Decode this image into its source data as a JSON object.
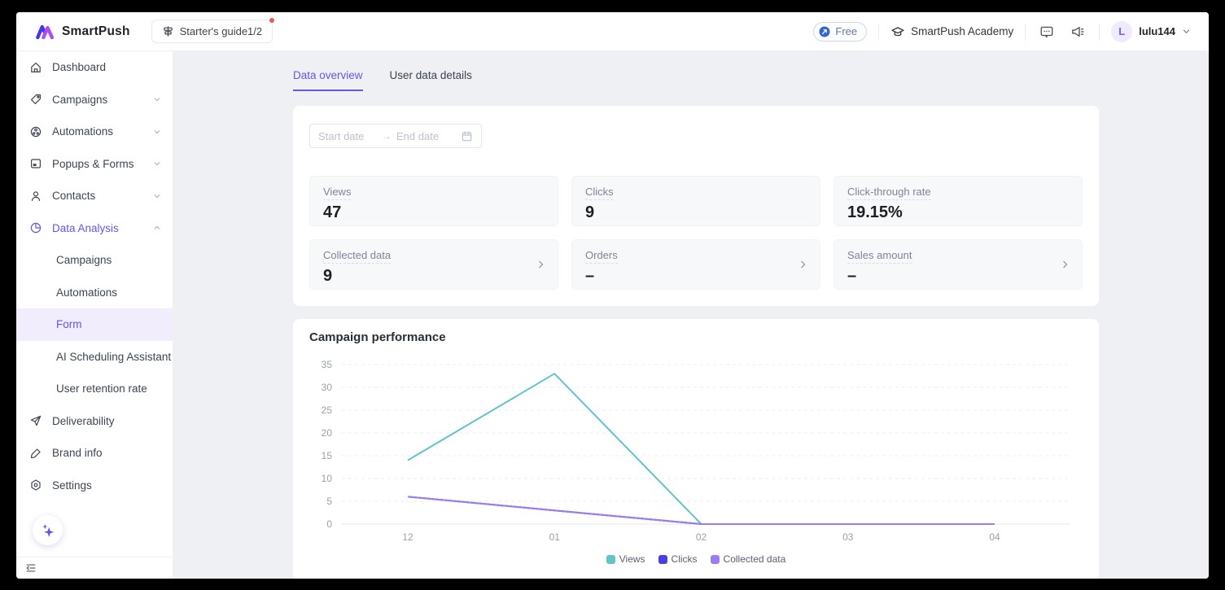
{
  "header": {
    "brand": "SmartPush",
    "starter_guide_label": "Starter's guide1/2",
    "plan_badge": "Free",
    "academy_label": "SmartPush Academy",
    "user": {
      "initial": "L",
      "name": "lulu144"
    }
  },
  "sidebar": {
    "items": [
      {
        "label": "Dashboard",
        "icon": "home-icon"
      },
      {
        "label": "Campaigns",
        "icon": "tag-icon",
        "chevron": "down"
      },
      {
        "label": "Automations",
        "icon": "automation-icon",
        "chevron": "down"
      },
      {
        "label": "Popups & Forms",
        "icon": "popup-icon",
        "chevron": "down"
      },
      {
        "label": "Contacts",
        "icon": "contacts-icon",
        "chevron": "down"
      },
      {
        "label": "Data Analysis",
        "icon": "pie-chart-icon",
        "chevron": "up",
        "active": true
      }
    ],
    "data_analysis_children": [
      {
        "label": "Campaigns"
      },
      {
        "label": "Automations"
      },
      {
        "label": "Form",
        "active": true
      },
      {
        "label": "AI Scheduling Assistant"
      },
      {
        "label": "User retention rate"
      }
    ],
    "items_bottom": [
      {
        "label": "Deliverability",
        "icon": "paper-plane-icon"
      },
      {
        "label": "Brand info",
        "icon": "brush-icon"
      },
      {
        "label": "Settings",
        "icon": "settings-icon"
      }
    ]
  },
  "tabs": [
    {
      "label": "Data overview",
      "active": true
    },
    {
      "label": "User data details",
      "active": false
    }
  ],
  "filters": {
    "start_placeholder": "Start date",
    "end_placeholder": "End date"
  },
  "stats": [
    {
      "label": "Views",
      "value": "47",
      "linked": false
    },
    {
      "label": "Clicks",
      "value": "9",
      "linked": false
    },
    {
      "label": "Click-through rate",
      "value": "19.15%",
      "linked": false
    },
    {
      "label": "Collected data",
      "value": "9",
      "linked": true
    },
    {
      "label": "Orders",
      "value": "–",
      "linked": true
    },
    {
      "label": "Sales amount",
      "value": "–",
      "linked": true
    }
  ],
  "chart_data": {
    "type": "line",
    "title": "Campaign performance",
    "x": [
      "12",
      "01",
      "02",
      "03",
      "04"
    ],
    "series": [
      {
        "name": "Views",
        "color": "#62C3CB",
        "values": [
          14,
          33,
          0,
          0,
          0
        ]
      },
      {
        "name": "Clicks",
        "color": "#4A3FE0",
        "values": [
          6,
          3,
          0,
          0,
          0
        ]
      },
      {
        "name": "Collected data",
        "color": "#9B7DF0",
        "values": [
          6,
          3,
          0,
          0,
          0
        ]
      }
    ],
    "ylim": [
      0,
      35
    ],
    "y_ticks": [
      0,
      5,
      10,
      15,
      20,
      25,
      30,
      35
    ],
    "grid": "dashed-horizontal",
    "legend_position": "bottom"
  },
  "colors": {
    "accent": "#6456E8",
    "active_item_bg": "#F1EDFC",
    "free_badge_text": "#5E7BA0",
    "notification_dot": "#EE5B44"
  }
}
